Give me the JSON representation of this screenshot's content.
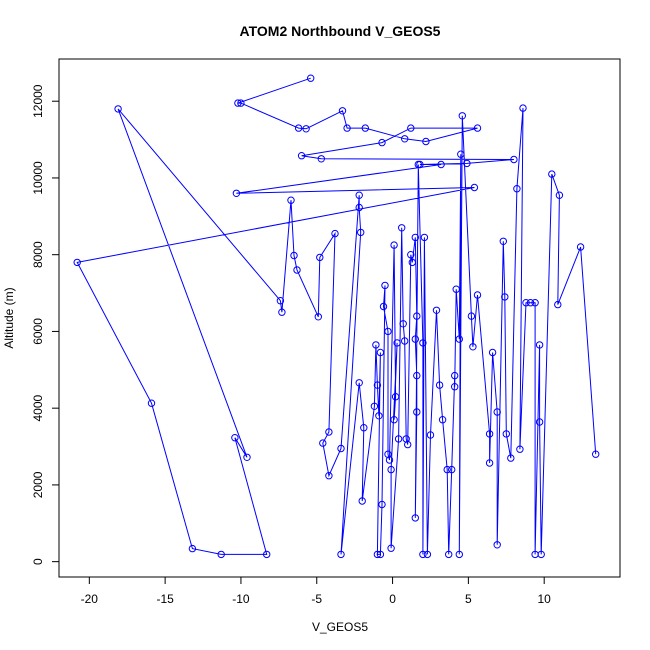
{
  "chart_data": {
    "type": "line",
    "title": "ATOM2 Northbound V_GEOS5",
    "xlabel": "V_GEOS5",
    "ylabel": "Altitude (m)",
    "xlim": [
      -22,
      15
    ],
    "ylim": [
      -400,
      13100
    ],
    "xticks": [
      -20,
      -15,
      -10,
      -5,
      0,
      5,
      10
    ],
    "yticks": [
      0,
      2000,
      4000,
      6000,
      8000,
      10000,
      12000
    ],
    "grid": false,
    "line_color": "#0000ff",
    "marker": "open-circle",
    "series": [
      {
        "values": [
          [
            -5.4,
            12600
          ],
          [
            -10.2,
            11950
          ],
          [
            -10,
            11950
          ],
          [
            -6.2,
            11300
          ],
          [
            -5.7,
            11280
          ],
          [
            -3.3,
            11750
          ],
          [
            -3,
            11300
          ],
          [
            -1.8,
            11300
          ],
          [
            0.8,
            11020
          ],
          [
            2.2,
            10950
          ],
          [
            5.6,
            11300
          ],
          [
            1.2,
            11300
          ],
          [
            -0.7,
            10920
          ],
          [
            -6,
            10580
          ],
          [
            -4.7,
            10500
          ],
          [
            8,
            10480
          ],
          [
            4.9,
            10380
          ],
          [
            1.8,
            10350
          ],
          [
            3.2,
            10350
          ],
          [
            -10.3,
            9600
          ],
          [
            5.4,
            9750
          ],
          [
            -20.8,
            7800
          ],
          [
            -15.9,
            4130
          ],
          [
            -13.2,
            340
          ],
          [
            -11.3,
            190
          ],
          [
            -8.3,
            190
          ],
          [
            -10.4,
            3230
          ],
          [
            -9.6,
            2720
          ],
          [
            -18.1,
            11800
          ],
          [
            -7.4,
            6800
          ],
          [
            -7.3,
            6500
          ],
          [
            -6.7,
            9420
          ],
          [
            -6.5,
            7980
          ],
          [
            -6.3,
            7600
          ],
          [
            -4.9,
            6380
          ],
          [
            -4.8,
            7930
          ],
          [
            -3.8,
            8550
          ],
          [
            -4.2,
            3380
          ],
          [
            -4.6,
            3090
          ],
          [
            -4.2,
            2240
          ],
          [
            -3.4,
            2950
          ],
          [
            -2.2,
            9550
          ],
          [
            -2.2,
            9230
          ],
          [
            -2.1,
            8580
          ],
          [
            -3.4,
            190
          ],
          [
            -2.2,
            4660
          ],
          [
            -1.9,
            3490
          ],
          [
            -2,
            1580
          ],
          [
            -1.2,
            4050
          ],
          [
            -1.1,
            5650
          ],
          [
            -1,
            4600
          ],
          [
            -0.9,
            3800
          ],
          [
            -0.8,
            5450
          ],
          [
            -1,
            190
          ],
          [
            -0.8,
            190
          ],
          [
            -0.7,
            1490
          ],
          [
            -0.5,
            7200
          ],
          [
            -0.6,
            6650
          ],
          [
            -0.3,
            6000
          ],
          [
            -0.3,
            2800
          ],
          [
            -0.2,
            2650
          ],
          [
            0.1,
            8250
          ],
          [
            0.2,
            4300
          ],
          [
            0.1,
            3700
          ],
          [
            0.3,
            5700
          ],
          [
            -0.1,
            2400
          ],
          [
            -0.1,
            350
          ],
          [
            0.4,
            3200
          ],
          [
            0.6,
            8700
          ],
          [
            0.7,
            6200
          ],
          [
            0.8,
            5750
          ],
          [
            0.9,
            3200
          ],
          [
            1,
            3050
          ],
          [
            1.2,
            8000
          ],
          [
            1.3,
            7800
          ],
          [
            1.5,
            8450
          ],
          [
            1.6,
            6400
          ],
          [
            1.5,
            5800
          ],
          [
            1.6,
            4850
          ],
          [
            1.6,
            3900
          ],
          [
            1.5,
            1140
          ],
          [
            1.7,
            10350
          ],
          [
            2,
            5700
          ],
          [
            2,
            190
          ],
          [
            2.1,
            8450
          ],
          [
            2.3,
            190
          ],
          [
            2.5,
            3300
          ],
          [
            2.9,
            6550
          ],
          [
            3.1,
            4600
          ],
          [
            3.3,
            3700
          ],
          [
            3.6,
            2400
          ],
          [
            3.7,
            190
          ],
          [
            3.9,
            2400
          ],
          [
            4.1,
            4850
          ],
          [
            4.1,
            4560
          ],
          [
            4.2,
            7100
          ],
          [
            4.4,
            5800
          ],
          [
            4.5,
            10620
          ],
          [
            4.4,
            190
          ],
          [
            4.6,
            11620
          ],
          [
            5.2,
            6400
          ],
          [
            5.3,
            5600
          ],
          [
            5.6,
            6950
          ],
          [
            6.4,
            3330
          ],
          [
            6.4,
            2570
          ],
          [
            6.6,
            5450
          ],
          [
            6.9,
            3900
          ],
          [
            6.9,
            440
          ],
          [
            7.3,
            8350
          ],
          [
            7.4,
            6900
          ],
          [
            7.5,
            3330
          ],
          [
            7.8,
            2700
          ],
          [
            8.2,
            9720
          ],
          [
            8.6,
            11820
          ],
          [
            8.4,
            2930
          ],
          [
            8.8,
            6750
          ],
          [
            9.1,
            6750
          ],
          [
            9.4,
            6750
          ],
          [
            9.4,
            190
          ],
          [
            9.7,
            5650
          ],
          [
            9.7,
            3640
          ],
          [
            9.8,
            190
          ],
          [
            10.5,
            10100
          ],
          [
            11,
            9550
          ],
          [
            10.9,
            6700
          ],
          [
            12.4,
            8200
          ],
          [
            13.4,
            2800
          ]
        ]
      }
    ]
  }
}
